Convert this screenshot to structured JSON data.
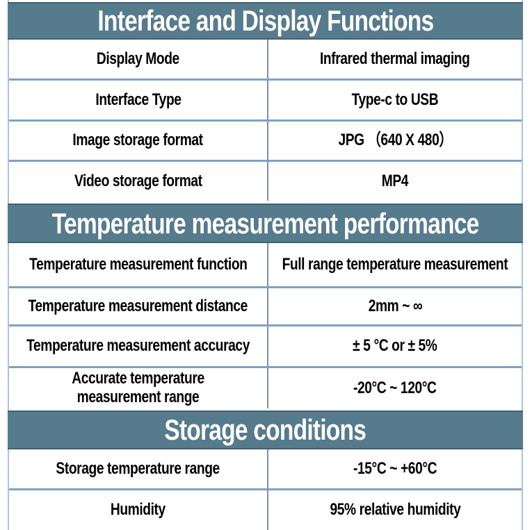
{
  "table": {
    "sections": [
      {
        "title": "Interface and Display Functions",
        "rows": [
          {
            "label": "Display Mode",
            "value": "Infrared thermal imaging"
          },
          {
            "label": "Interface Type",
            "value": "Type-c to USB"
          },
          {
            "label": "Image storage format",
            "value": "JPG （640 X 480）"
          },
          {
            "label": "Video storage format",
            "value": "MP4"
          }
        ]
      },
      {
        "title": "Temperature measurement performance",
        "rows": [
          {
            "label": "Temperature measurement function",
            "value": "Full range temperature measurement"
          },
          {
            "label": "Temperature measurement distance",
            "value": "2mm ~ ∞"
          },
          {
            "label": "Temperature measurement accuracy",
            "value": "± 5 °C or ± 5%"
          },
          {
            "label": "Accurate temperature measurement range",
            "value": "-20°C ~ 120°C"
          }
        ]
      },
      {
        "title": "Storage conditions",
        "rows": [
          {
            "label": "Storage temperature range",
            "value": "-15°C ~ +60°C"
          },
          {
            "label": "Humidity",
            "value": "95% relative humidity"
          }
        ]
      }
    ]
  },
  "colors": {
    "header_background": "#567b8d",
    "header_border": "#41606e",
    "header_text": "#ffffff",
    "row_text": "#000000",
    "column_divider": "#6f93bb",
    "row_border": "#7ea1c6",
    "outer_border": "#aec2db",
    "page_background": "#ffffff"
  }
}
